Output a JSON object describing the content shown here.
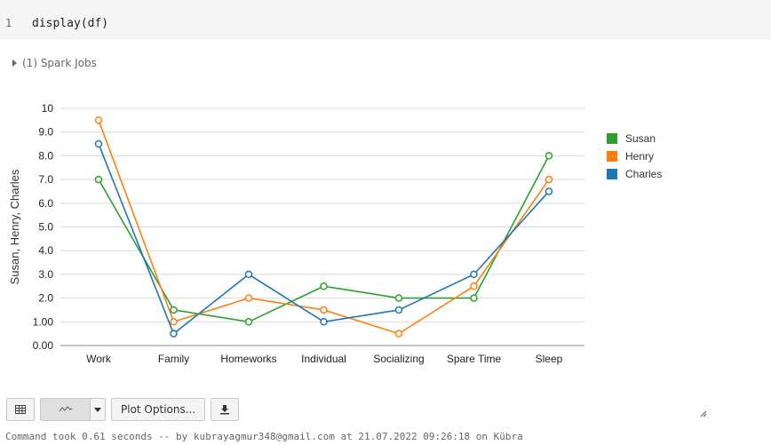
{
  "code_cell": {
    "line_number": "1",
    "code": "display(df)"
  },
  "spark_jobs": {
    "label": "(1) Spark Jobs"
  },
  "chart_data": {
    "type": "line",
    "categories": [
      "Work",
      "Family",
      "Homeworks",
      "Individual",
      "Socializing",
      "Spare Time",
      "Sleep"
    ],
    "series": [
      {
        "name": "Susan",
        "color": "#2ca02c",
        "values": [
          7.0,
          1.5,
          1.0,
          2.5,
          2.0,
          2.0,
          8.0
        ]
      },
      {
        "name": "Henry",
        "color": "#ff7f0e",
        "values": [
          9.5,
          1.0,
          2.0,
          1.5,
          0.5,
          2.5,
          7.0
        ]
      },
      {
        "name": "Charles",
        "color": "#1f77b4",
        "values": [
          8.5,
          0.5,
          3.0,
          1.0,
          1.5,
          3.0,
          6.5
        ]
      }
    ],
    "ylabel": "Susan, Henry, Charles",
    "ylim": [
      0,
      10
    ],
    "yticks": [
      "0.00",
      "1.00",
      "2.0",
      "3.0",
      "4.0",
      "5.0",
      "6.0",
      "7.0",
      "8.0",
      "9.0",
      "10"
    ],
    "grid": true,
    "legend": "right"
  },
  "toolbar": {
    "table_icon": "table-icon",
    "chart_icon": "line-chart-icon",
    "dropdown_icon": "caret-down-icon",
    "plot_options_label": "Plot Options...",
    "download_icon": "download-icon"
  },
  "footer": {
    "text": "Command took 0.61 seconds -- by kubrayagmur348@gmail.com at 21.07.2022 09:26:18 on Kübra"
  }
}
